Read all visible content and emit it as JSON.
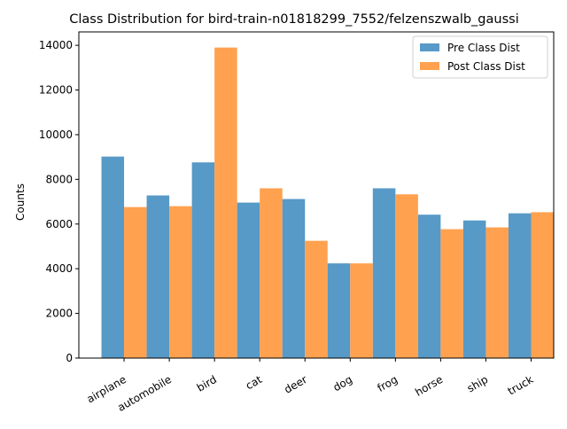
{
  "chart_data": {
    "type": "bar",
    "title": "Class Distribution for bird-train-n01818299_7552/felzenszwalb_gaussi",
    "xlabel": "",
    "ylabel": "Counts",
    "categories": [
      "airplane",
      "automobile",
      "bird",
      "cat",
      "deer",
      "dog",
      "frog",
      "horse",
      "ship",
      "truck"
    ],
    "series": [
      {
        "name": "Pre Class Dist",
        "color": "#5799c7",
        "values": [
          9020,
          7280,
          8760,
          6960,
          7120,
          4240,
          7600,
          6420,
          6160,
          6480
        ]
      },
      {
        "name": "Post Class Dist",
        "color": "#ffa14f",
        "values": [
          6760,
          6800,
          13900,
          7600,
          5250,
          4240,
          7330,
          5770,
          5850,
          6530
        ]
      }
    ],
    "ylim": [
      0,
      14600
    ],
    "yticks": [
      0,
      2000,
      4000,
      6000,
      8000,
      10000,
      12000,
      14000
    ],
    "grid": false,
    "legend_position": "top-right"
  }
}
